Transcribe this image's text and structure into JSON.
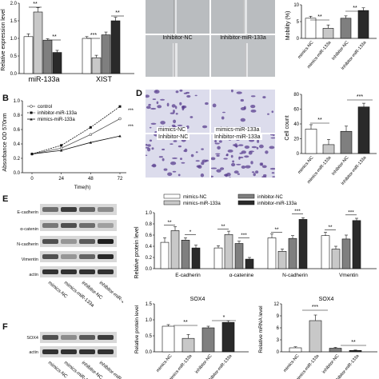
{
  "panel_labels": {
    "b": "B",
    "d": "D",
    "e": "E",
    "f": "F"
  },
  "colors": {
    "white": "#ffffff",
    "lightgray": "#c8c8c8",
    "midgray": "#7f7f7f",
    "dark": "#2a2a2a",
    "wound_bg": "#b9bcbf",
    "stain_bg": "#dcdcec",
    "stain_cell": "#5a3f8f"
  },
  "panel_a": {
    "ylabel": "Relative expression level",
    "groups": [
      "miR-133a",
      "XIST"
    ],
    "sig": {
      "g1_left": "**",
      "g1_right": "**",
      "g2_left": "***",
      "g2_right": "**"
    }
  },
  "panel_b": {
    "ylabel": "Absorbance OD 570nm",
    "xlabel": "Time(h)",
    "legend": [
      "control",
      "inhibitor-miR-133a",
      "mimics-miR-133a"
    ],
    "sig": [
      "***",
      "***"
    ]
  },
  "panel_c": {
    "image_labels": [
      "Inhibitor-NC",
      "Inhibitor-miR-133a"
    ],
    "ylabel": "Mobility (%)",
    "categories": [
      "mimics-NC",
      "mimics-miR-133a",
      "Inhibitor-NC",
      "Inhibitor-miR-133a"
    ],
    "sig": [
      "**",
      "**"
    ]
  },
  "panel_d": {
    "image_labels": [
      "mimics-NC",
      "mimics-miR-133a",
      "Inhibitor-NC",
      "Inhibitor-miR-133a"
    ],
    "ylabel": "Cell count",
    "categories": [
      "mimics-NC",
      "mimics-miR-133a",
      "Inhibitor-NC",
      "Inhibitor-miR-133a"
    ],
    "sig": [
      "**",
      "***"
    ]
  },
  "panel_e": {
    "blot_rows": [
      "E-cadherin",
      "α-catenin",
      "N-cadherin",
      "Vimentin",
      "actin"
    ],
    "lane_labels": [
      "mimics-NC",
      "mimics-miR-133a",
      "inhibitor-NC",
      "inhibitor-miR-133a"
    ],
    "legend": [
      "mimics-NC",
      "mimics-miR-133a",
      "inhibitor-NC",
      "inhibitor-miR-133a"
    ],
    "ylabel": "Relative protein level",
    "categories": [
      "E-cadherin",
      "α-catenine",
      "N-cadherin",
      "Vmentin"
    ],
    "sig": [
      [
        "**",
        "*"
      ],
      [
        "**",
        "***"
      ],
      [
        "**",
        "***"
      ],
      [
        "**",
        "***"
      ]
    ]
  },
  "panel_f": {
    "blot_rows": [
      "SOX4",
      "actin"
    ],
    "lane_labels": [
      "mimics-NC",
      "mimics-miR-133a",
      "inhibitor-NC",
      "inhibitor-miR-133a"
    ],
    "protein_chart": {
      "title": "SOX4",
      "ylabel": "Relative protein level",
      "sig": [
        "**",
        "*"
      ]
    },
    "mrna_chart": {
      "title": "SOX4",
      "ylabel": "Relative mRNA level",
      "sig": [
        "***",
        "**"
      ]
    },
    "categories": [
      "mimics-NC",
      "mimics-miR-133a",
      "inhibitor-NC",
      "inhibitor-miR-133a"
    ]
  },
  "chart_data": [
    {
      "type": "bar",
      "panel": "A",
      "categories": [
        "miR-133a",
        "XIST"
      ],
      "series_fill": [
        "#ffffff",
        "#c8c8c8",
        "#7f7f7f",
        "#2a2a2a"
      ],
      "series": [
        {
          "values": [
            1.05,
            1.0
          ]
        },
        {
          "values": [
            1.75,
            0.45
          ]
        },
        {
          "values": [
            0.95,
            1.1
          ]
        },
        {
          "values": [
            0.6,
            1.5
          ]
        }
      ],
      "errors": [
        [
          0.08,
          0.05
        ],
        [
          0.12,
          0.07
        ],
        [
          0.04,
          0.08
        ],
        [
          0.06,
          0.1
        ]
      ],
      "ylabel": "Relative expression level",
      "ylim": [
        0,
        2.0
      ],
      "yticks": [
        0.0,
        0.5,
        1.0,
        1.5,
        2.0
      ]
    },
    {
      "type": "line",
      "panel": "B",
      "x": [
        0,
        24,
        48,
        72
      ],
      "xlabel": "Time(h)",
      "ylabel": "Absorbance OD 570nm",
      "ylim": [
        0,
        1.0
      ],
      "yticks": [
        0.0,
        0.2,
        0.4,
        0.6,
        0.8,
        1.0
      ],
      "series": [
        {
          "name": "control",
          "values": [
            0.26,
            0.34,
            0.53,
            0.75
          ]
        },
        {
          "name": "inhibitor-miR-133a",
          "values": [
            0.26,
            0.38,
            0.63,
            0.92
          ]
        },
        {
          "name": "mimics-miR-133a",
          "values": [
            0.26,
            0.31,
            0.42,
            0.51
          ]
        }
      ]
    },
    {
      "type": "bar",
      "panel": "C",
      "categories": [
        "mimics-NC",
        "mimics-miR-133a",
        "Inhibitor-NC",
        "Inhibitor-miR-133a"
      ],
      "values": [
        6.0,
        3.0,
        6.0,
        8.3
      ],
      "errors": [
        0.6,
        1.0,
        0.7,
        0.8
      ],
      "ylabel": "Mobility (%)",
      "ylim": [
        0,
        10
      ],
      "yticks": [
        0,
        5,
        10
      ]
    },
    {
      "type": "bar",
      "panel": "D",
      "categories": [
        "mimics-NC",
        "mimics-miR-133a",
        "Inhibitor-NC",
        "Inhibitor-miR-133a"
      ],
      "values": [
        33,
        12,
        30,
        63
      ],
      "errors": [
        6,
        7,
        7,
        5
      ],
      "ylabel": "Cell count",
      "ylim": [
        0,
        80
      ],
      "yticks": [
        0,
        20,
        40,
        60,
        80
      ]
    },
    {
      "type": "bar",
      "panel": "E",
      "categories": [
        "E-cadherin",
        "α-catenine",
        "N-cadherin",
        "Vmentin"
      ],
      "series": [
        {
          "name": "mimics-NC",
          "values": [
            0.47,
            0.37,
            0.55,
            0.59
          ]
        },
        {
          "name": "mimics-miR-133a",
          "values": [
            0.68,
            0.61,
            0.31,
            0.35
          ]
        },
        {
          "name": "inhibitor-NC",
          "values": [
            0.51,
            0.45,
            0.54,
            0.53
          ]
        },
        {
          "name": "inhibitor-miR-133a",
          "values": [
            0.37,
            0.17,
            0.88,
            0.86
          ]
        }
      ],
      "errors": [
        [
          0.08,
          0.04,
          0.07,
          0.06
        ],
        [
          0.07,
          0.06,
          0.04,
          0.05
        ],
        [
          0.04,
          0.04,
          0.05,
          0.07
        ],
        [
          0.05,
          0.03,
          0.03,
          0.04
        ]
      ],
      "ylabel": "Relative protein level",
      "ylim": [
        0,
        1.0
      ],
      "yticks": [
        0.0,
        0.2,
        0.4,
        0.6,
        0.8,
        1.0
      ]
    },
    {
      "type": "bar",
      "panel": "F-protein",
      "title": "SOX4",
      "categories": [
        "mimics-NC",
        "mimics-miR-133a",
        "inhibitor-NC",
        "inhibitor-miR-133a"
      ],
      "values": [
        0.8,
        0.42,
        0.75,
        0.92
      ],
      "errors": [
        0.05,
        0.12,
        0.05,
        0.05
      ],
      "ylabel": "Relative protein level",
      "ylim": [
        0,
        1.5
      ],
      "yticks": [
        0.0,
        0.5,
        1.0,
        1.5
      ]
    },
    {
      "type": "bar",
      "panel": "F-mrna",
      "title": "SOX4",
      "categories": [
        "mimics-NC",
        "mimics-miR-133a",
        "inhibitor-NC",
        "inhibitor-miR-133a"
      ],
      "values": [
        1.0,
        7.8,
        0.9,
        0.35
      ],
      "errors": [
        0.25,
        1.4,
        0.2,
        0.1
      ],
      "ylabel": "Relative mRNA level",
      "ylim": [
        0,
        12
      ],
      "yticks": [
        0,
        3,
        6,
        9,
        12
      ]
    }
  ]
}
